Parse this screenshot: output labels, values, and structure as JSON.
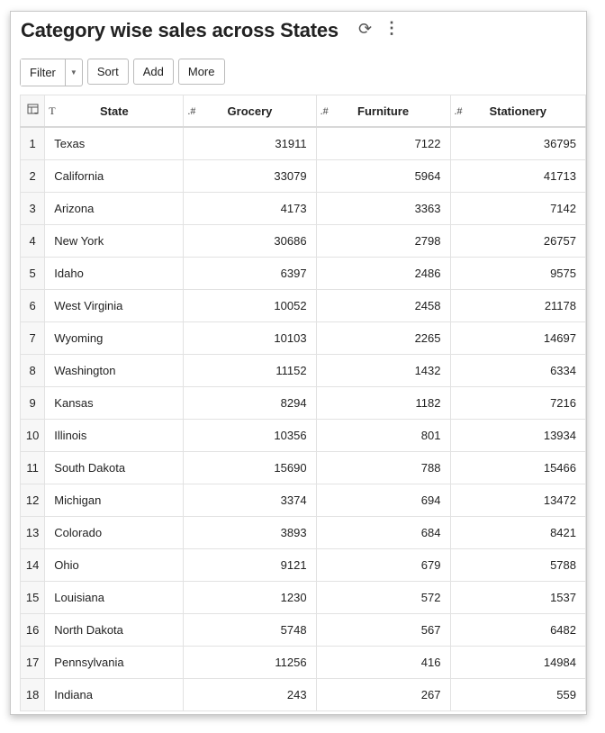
{
  "header": {
    "title": "Category wise sales across States",
    "refresh_icon": "refresh-icon",
    "menu_icon": "kebab-menu-icon"
  },
  "toolbar": {
    "filter": "Filter",
    "sort": "Sort",
    "add": "Add",
    "more": "More"
  },
  "table": {
    "columns": [
      {
        "label": "State",
        "type_icon": "T"
      },
      {
        "label": "Grocery",
        "type_icon": ".#"
      },
      {
        "label": "Furniture",
        "type_icon": ".#"
      },
      {
        "label": "Stationery",
        "type_icon": ".#"
      }
    ],
    "rows": [
      [
        "1",
        "Texas",
        "31911",
        "7122",
        "36795"
      ],
      [
        "2",
        "California",
        "33079",
        "5964",
        "41713"
      ],
      [
        "3",
        "Arizona",
        "4173",
        "3363",
        "7142"
      ],
      [
        "4",
        "New York",
        "30686",
        "2798",
        "26757"
      ],
      [
        "5",
        "Idaho",
        "6397",
        "2486",
        "9575"
      ],
      [
        "6",
        "West Virginia",
        "10052",
        "2458",
        "21178"
      ],
      [
        "7",
        "Wyoming",
        "10103",
        "2265",
        "14697"
      ],
      [
        "8",
        "Washington",
        "11152",
        "1432",
        "6334"
      ],
      [
        "9",
        "Kansas",
        "8294",
        "1182",
        "7216"
      ],
      [
        "10",
        "Illinois",
        "10356",
        "801",
        "13934"
      ],
      [
        "11",
        "South Dakota",
        "15690",
        "788",
        "15466"
      ],
      [
        "12",
        "Michigan",
        "3374",
        "694",
        "13472"
      ],
      [
        "13",
        "Colorado",
        "3893",
        "684",
        "8421"
      ],
      [
        "14",
        "Ohio",
        "9121",
        "679",
        "5788"
      ],
      [
        "15",
        "Louisiana",
        "1230",
        "572",
        "1537"
      ],
      [
        "16",
        "North Dakota",
        "5748",
        "567",
        "6482"
      ],
      [
        "17",
        "Pennsylvania",
        "11256",
        "416",
        "14984"
      ],
      [
        "18",
        "Indiana",
        "243",
        "267",
        "559"
      ]
    ]
  }
}
